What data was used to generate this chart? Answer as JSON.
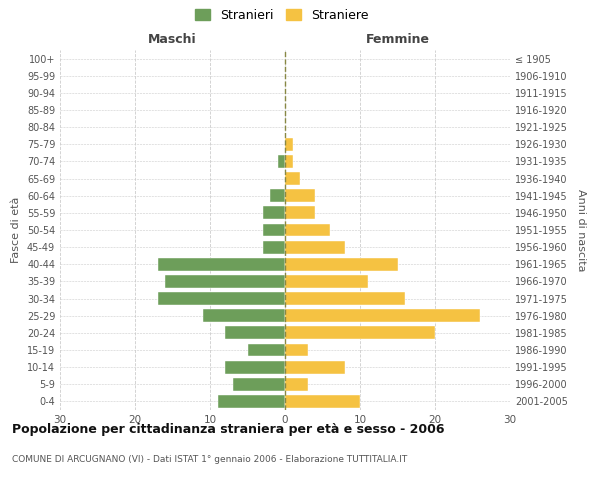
{
  "age_groups": [
    "100+",
    "95-99",
    "90-94",
    "85-89",
    "80-84",
    "75-79",
    "70-74",
    "65-69",
    "60-64",
    "55-59",
    "50-54",
    "45-49",
    "40-44",
    "35-39",
    "30-34",
    "25-29",
    "20-24",
    "15-19",
    "10-14",
    "5-9",
    "0-4"
  ],
  "birth_years": [
    "≤ 1905",
    "1906-1910",
    "1911-1915",
    "1916-1920",
    "1921-1925",
    "1926-1930",
    "1931-1935",
    "1936-1940",
    "1941-1945",
    "1946-1950",
    "1951-1955",
    "1956-1960",
    "1961-1965",
    "1966-1970",
    "1971-1975",
    "1976-1980",
    "1981-1985",
    "1986-1990",
    "1991-1995",
    "1996-2000",
    "2001-2005"
  ],
  "maschi": [
    0,
    0,
    0,
    0,
    0,
    0,
    1,
    0,
    2,
    3,
    3,
    3,
    17,
    16,
    17,
    11,
    8,
    5,
    8,
    7,
    9
  ],
  "femmine": [
    0,
    0,
    0,
    0,
    0,
    1,
    1,
    2,
    4,
    4,
    6,
    8,
    15,
    11,
    16,
    26,
    20,
    3,
    8,
    3,
    10
  ],
  "color_maschi": "#6d9e5a",
  "color_femmine": "#f5c242",
  "title_main": "Popolazione per cittadinanza straniera per età e sesso - 2006",
  "title_sub": "COMUNE DI ARCUGNANO (VI) - Dati ISTAT 1° gennaio 2006 - Elaborazione TUTTITALIA.IT",
  "legend_maschi": "Stranieri",
  "legend_femmine": "Straniere",
  "xlabel_left": "Maschi",
  "xlabel_right": "Femmine",
  "ylabel_left": "Fasce di età",
  "ylabel_right": "Anni di nascita",
  "xlim": 30,
  "background_color": "#ffffff",
  "grid_color": "#cccccc"
}
